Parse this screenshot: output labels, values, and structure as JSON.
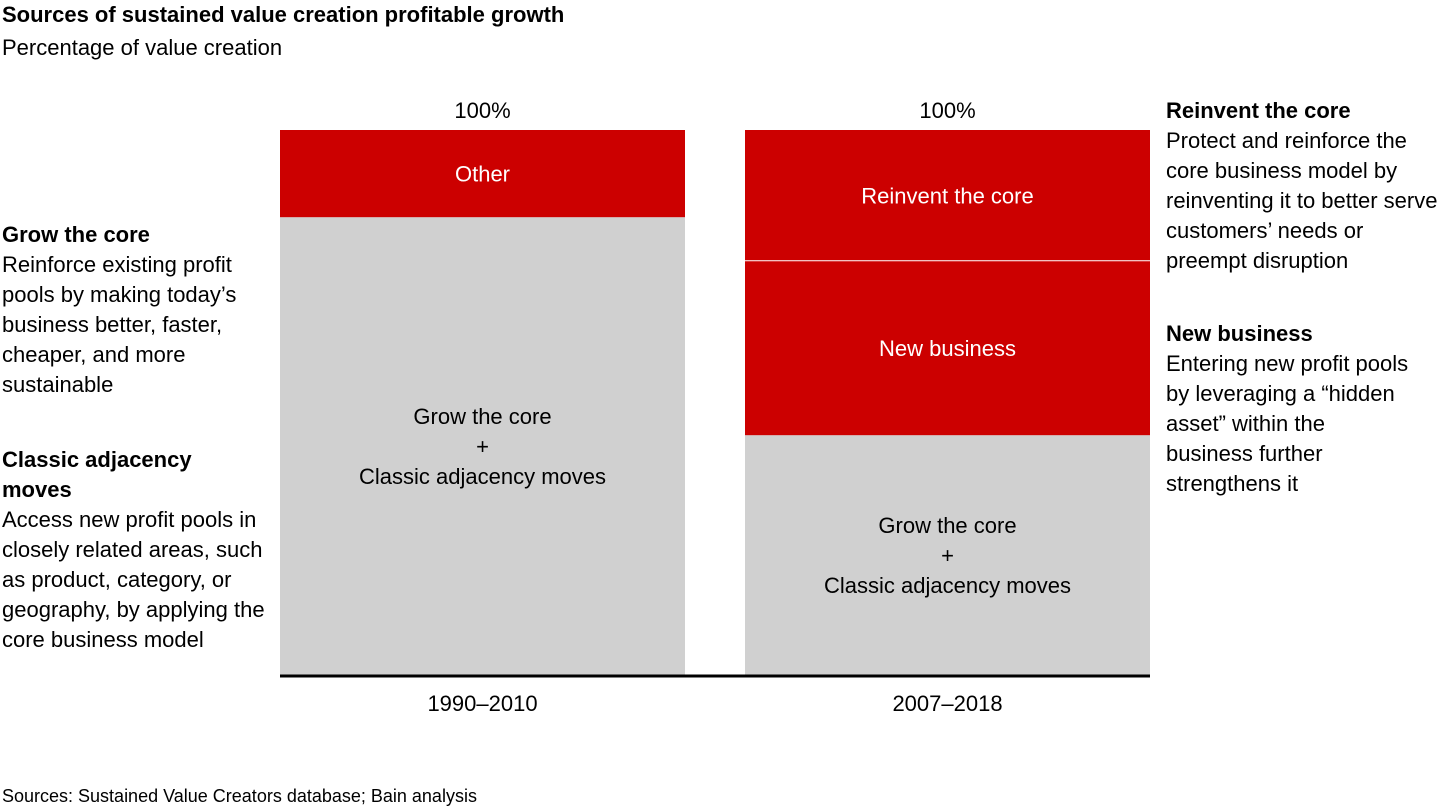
{
  "chart_data": {
    "type": "bar",
    "stacked": true,
    "title": "Sources of sustained value creation profitable growth",
    "subtitle": "Percentage of value creation",
    "xlabel": "",
    "ylabel": "",
    "ylim": [
      0,
      100
    ],
    "grid": false,
    "categories": [
      "1990–2010",
      "2007–2018"
    ],
    "totals": [
      "100%",
      "100%"
    ],
    "bars": [
      {
        "category": "1990–2010",
        "segments": [
          {
            "name": "Grow the core + Classic adjacency moves",
            "lines": [
              "Grow the core",
              "+",
              "Classic adjacency moves"
            ],
            "value": 84,
            "color": "#d0d0d0",
            "text_color": "#000000"
          },
          {
            "name": "Other",
            "lines": [
              "Other"
            ],
            "value": 16,
            "color": "#cc0000",
            "text_color": "#ffffff"
          }
        ]
      },
      {
        "category": "2007–2018",
        "segments": [
          {
            "name": "Grow the core + Classic adjacency moves",
            "lines": [
              "Grow the core",
              "+",
              "Classic adjacency moves"
            ],
            "value": 44,
            "color": "#d0d0d0",
            "text_color": "#000000"
          },
          {
            "name": "New business",
            "lines": [
              "New business"
            ],
            "value": 32,
            "color": "#cc0000",
            "text_color": "#ffffff"
          },
          {
            "name": "Reinvent the core",
            "lines": [
              "Reinvent the core"
            ],
            "value": 24,
            "color": "#cc0000",
            "text_color": "#ffffff"
          }
        ]
      }
    ]
  },
  "notes": {
    "grow_core": {
      "heading": "Grow the core",
      "body": "Reinforce existing profit pools by making today’s business better, faster, cheaper, and more sustainable"
    },
    "adjacency": {
      "heading": "Classic adjacency moves",
      "body": "Access new profit pools in closely related areas, such as product, category, or geography, by applying the core business model"
    },
    "reinvent": {
      "heading": "Reinvent the core",
      "body": "Protect and reinforce the core business model by reinventing it to better serve customers’ needs or preempt disruption"
    },
    "new_business": {
      "heading": "New business",
      "body": "Entering new profit pools by leveraging a “hidden asset” within the business further strengthens it"
    }
  },
  "source": "Sources: Sustained Value Creators database; Bain analysis"
}
